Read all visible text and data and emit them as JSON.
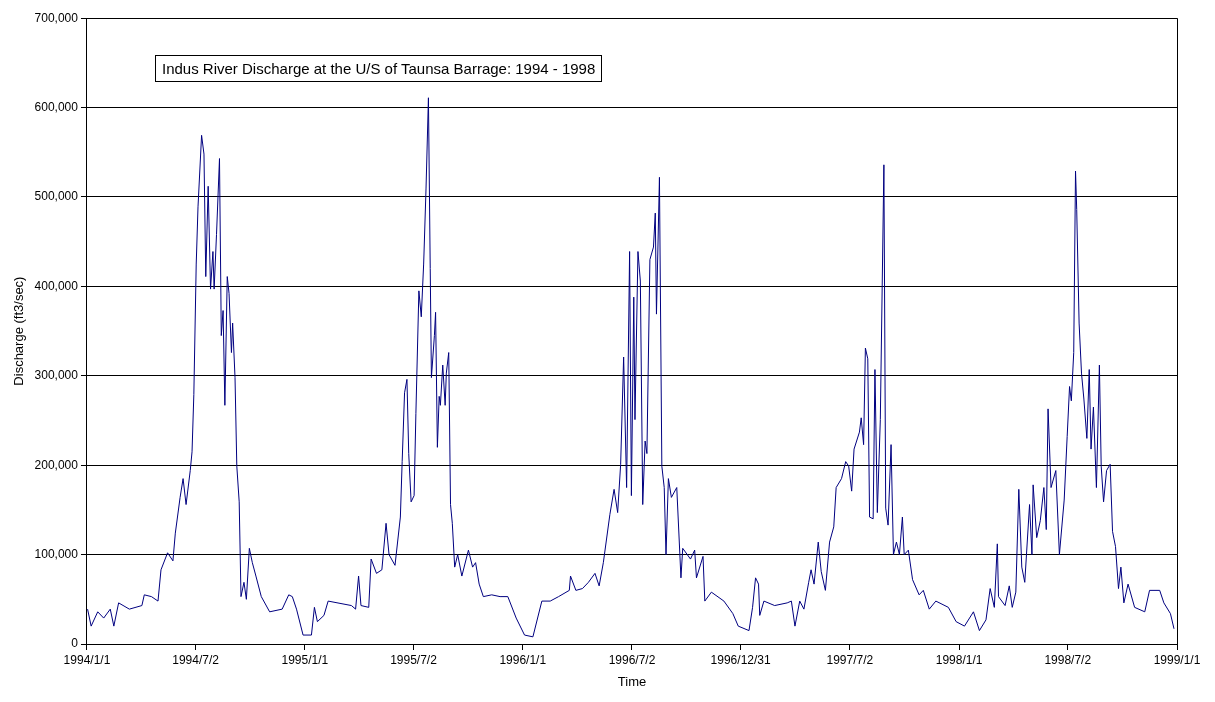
{
  "chart_data": {
    "type": "line",
    "title": "Indus River Discharge at the U/S of Taunsa Barrage: 1994 - 1998",
    "xlabel": "Time",
    "ylabel": "Discharge (ft3/sec)",
    "xlim": [
      "1994-01-01",
      "1999-01-01"
    ],
    "xticks": [
      {
        "value": "1994-01-01",
        "label": "1994/1/1"
      },
      {
        "value": "1994-07-02",
        "label": "1994/7/2"
      },
      {
        "value": "1995-01-01",
        "label": "1995/1/1"
      },
      {
        "value": "1995-07-02",
        "label": "1995/7/2"
      },
      {
        "value": "1996-01-01",
        "label": "1996/1/1"
      },
      {
        "value": "1996-07-02",
        "label": "1996/7/2"
      },
      {
        "value": "1996-12-31",
        "label": "1996/12/31"
      },
      {
        "value": "1997-07-02",
        "label": "1997/7/2"
      },
      {
        "value": "1998-01-01",
        "label": "1998/1/1"
      },
      {
        "value": "1998-07-02",
        "label": "1998/7/2"
      },
      {
        "value": "1999-01-01",
        "label": "1999/1/1"
      }
    ],
    "ylim": [
      0,
      700000
    ],
    "yticks": [
      0,
      {
        "value": 100000,
        "label": "100,000"
      },
      {
        "value": 200000,
        "label": "200,000"
      },
      {
        "value": 300000,
        "label": "300,000"
      },
      {
        "value": 400000,
        "label": "400,000"
      },
      {
        "value": 500000,
        "label": "500,000"
      },
      {
        "value": 600000,
        "label": "600,000"
      },
      {
        "value": 700000,
        "label": "700,000"
      }
    ],
    "grid": "y",
    "legend": false,
    "marker": "none",
    "line_style": "solid",
    "series": [
      {
        "color": "#000080",
        "x": [
          "1994-01-02",
          "1994-01-08",
          "1994-01-19",
          "1994-01-29",
          "1994-02-09",
          "1994-02-15",
          "1994-02-23",
          "1994-03-13",
          "1994-04-03",
          "1994-04-07",
          "1994-04-19",
          "1994-04-30",
          "1994-05-05",
          "1994-05-16",
          "1994-05-25",
          "1994-05-29",
          "1994-06-06",
          "1994-06-11",
          "1994-06-16",
          "1994-06-23",
          "1994-06-26",
          "1994-06-29",
          "1994-07-03",
          "1994-07-06",
          "1994-07-12",
          "1994-07-16",
          "1994-07-19",
          "1994-07-23",
          "1994-07-27",
          "1994-07-31",
          "1994-08-02",
          "1994-08-06",
          "1994-08-11",
          "1994-08-14",
          "1994-08-17",
          "1994-08-20",
          "1994-08-24",
          "1994-08-27",
          "1994-08-31",
          "1994-09-02",
          "1994-09-06",
          "1994-09-09",
          "1994-09-13",
          "1994-09-16",
          "1994-09-21",
          "1994-09-25",
          "1994-09-30",
          "1994-10-05",
          "1994-10-11",
          "1994-10-20",
          "1994-11-03",
          "1994-11-24",
          "1994-12-05",
          "1994-12-11",
          "1994-12-18",
          "1994-12-29",
          "1995-01-12",
          "1995-01-17",
          "1995-01-22",
          "1995-02-02",
          "1995-02-09",
          "1995-03-20",
          "1995-03-27",
          "1995-04-01",
          "1995-04-05",
          "1995-04-18",
          "1995-04-22",
          "1995-05-01",
          "1995-05-10",
          "1995-05-17",
          "1995-05-22",
          "1995-06-01",
          "1995-06-10",
          "1995-06-13",
          "1995-06-17",
          "1995-06-21",
          "1995-06-24",
          "1995-06-28",
          "1995-07-03",
          "1995-07-06",
          "1995-07-11",
          "1995-07-15",
          "1995-07-19",
          "1995-07-23",
          "1995-07-27",
          "1995-07-30",
          "1995-08-01",
          "1995-08-06",
          "1995-08-08",
          "1995-08-11",
          "1995-08-14",
          "1995-08-16",
          "1995-08-20",
          "1995-08-24",
          "1995-08-26",
          "1995-08-30",
          "1995-09-02",
          "1995-09-05",
          "1995-09-09",
          "1995-09-14",
          "1995-09-21",
          "1995-10-02",
          "1995-10-09",
          "1995-10-14",
          "1995-10-20",
          "1995-10-27",
          "1995-11-10",
          "1995-11-24",
          "1995-12-07",
          "1995-12-21",
          "1996-01-04",
          "1996-01-18",
          "1996-02-02",
          "1996-02-16",
          "1996-03-01",
          "1996-03-19",
          "1996-03-21",
          "1996-03-30",
          "1996-04-10",
          "1996-04-20",
          "1996-05-01",
          "1996-05-08",
          "1996-05-15",
          "1996-05-26",
          "1996-06-02",
          "1996-06-08",
          "1996-06-13",
          "1996-06-18",
          "1996-06-23",
          "1996-06-28",
          "1996-07-01",
          "1996-07-05",
          "1996-07-07",
          "1996-07-12",
          "1996-07-16",
          "1996-07-20",
          "1996-07-24",
          "1996-07-27",
          "1996-08-01",
          "1996-08-07",
          "1996-08-10",
          "1996-08-12",
          "1996-08-17",
          "1996-08-21",
          "1996-08-25",
          "1996-08-28",
          "1996-09-01",
          "1996-09-06",
          "1996-09-15",
          "1996-09-22",
          "1996-09-25",
          "1996-10-08",
          "1996-10-15",
          "1996-10-18",
          "1996-10-29",
          "1996-11-01",
          "1996-11-12",
          "1996-12-03",
          "1996-12-18",
          "1996-12-27",
          "1997-01-14",
          "1997-01-20",
          "1997-01-25",
          "1997-01-30",
          "1997-02-01",
          "1997-02-08",
          "1997-02-26",
          "1997-03-19",
          "1997-03-26",
          "1997-04-01",
          "1997-04-09",
          "1997-04-16",
          "1997-04-24",
          "1997-04-28",
          "1997-05-03",
          "1997-05-10",
          "1997-05-15",
          "1997-05-22",
          "1997-05-29",
          "1997-06-05",
          "1997-06-09",
          "1997-06-18",
          "1997-06-25",
          "1997-06-30",
          "1997-07-05",
          "1997-07-09",
          "1997-07-18",
          "1997-07-21",
          "1997-07-25",
          "1997-07-28",
          "1997-08-01",
          "1997-08-04",
          "1997-08-10",
          "1997-08-13",
          "1997-08-17",
          "1997-08-22",
          "1997-08-28",
          "1997-08-31",
          "1997-09-04",
          "1997-09-09",
          "1997-09-13",
          "1997-09-18",
          "1997-09-23",
          "1997-09-28",
          "1997-10-01",
          "1997-10-08",
          "1997-10-15",
          "1997-10-26",
          "1997-11-02",
          "1997-11-12",
          "1997-11-23",
          "1997-12-14",
          "1997-12-27",
          "1998-01-10",
          "1998-01-25",
          "1998-02-04",
          "1998-02-15",
          "1998-02-22",
          "1998-03-01",
          "1998-03-06",
          "1998-03-08",
          "1998-03-19",
          "1998-03-26",
          "1998-03-31",
          "1998-04-06",
          "1998-04-11",
          "1998-04-16",
          "1998-04-21",
          "1998-04-29",
          "1998-05-03",
          "1998-05-05",
          "1998-05-11",
          "1998-05-17",
          "1998-05-23",
          "1998-05-27",
          "1998-05-30",
          "1998-06-04",
          "1998-06-12",
          "1998-06-18",
          "1998-06-26",
          "1998-07-01",
          "1998-07-05",
          "1998-07-08",
          "1998-07-12",
          "1998-07-15",
          "1998-07-17",
          "1998-07-21",
          "1998-07-25",
          "1998-07-29",
          "1998-08-03",
          "1998-08-07",
          "1998-08-10",
          "1998-08-14",
          "1998-08-19",
          "1998-08-24",
          "1998-08-27",
          "1998-08-31",
          "1998-09-05",
          "1998-09-11",
          "1998-09-15",
          "1998-09-20",
          "1998-09-25",
          "1998-09-29",
          "1998-10-04",
          "1998-10-11",
          "1998-10-22",
          "1998-11-08",
          "1998-11-16",
          "1998-12-03",
          "1998-12-10",
          "1998-12-21",
          "1998-12-27"
        ],
        "values": [
          39000,
          20000,
          36000,
          29000,
          39000,
          20000,
          46000,
          39000,
          43000,
          55000,
          53000,
          48000,
          83000,
          102000,
          93000,
          124000,
          164000,
          185000,
          156000,
          194000,
          215000,
          279000,
          425000,
          489000,
          569000,
          548000,
          411000,
          512000,
          397000,
          439000,
          397000,
          458000,
          543000,
          345000,
          373000,
          267000,
          411000,
          392000,
          326000,
          359000,
          298000,
          199000,
          159000,
          53000,
          69000,
          50000,
          107000,
          91000,
          76000,
          53000,
          36000,
          39000,
          55000,
          53000,
          39000,
          10000,
          10000,
          41000,
          25000,
          32000,
          48000,
          43000,
          39000,
          76000,
          43000,
          41000,
          95000,
          79000,
          83000,
          135000,
          100000,
          88000,
          142000,
          204000,
          281000,
          296000,
          213000,
          159000,
          166000,
          258000,
          395000,
          366000,
          425000,
          510000,
          611000,
          420000,
          298000,
          345000,
          371000,
          220000,
          277000,
          267000,
          312000,
          267000,
          303000,
          326000,
          156000,
          135000,
          86000,
          100000,
          76000,
          105000,
          86000,
          91000,
          67000,
          53000,
          55000,
          53000,
          53000,
          29000,
          10000,
          8000,
          48000,
          48000,
          53000,
          60000,
          76000,
          60000,
          62000,
          69000,
          79000,
          65000,
          91000,
          145000,
          173000,
          147000,
          201000,
          321000,
          175000,
          439000,
          166000,
          388000,
          251000,
          439000,
          406000,
          156000,
          227000,
          213000,
          430000,
          444000,
          482000,
          369000,
          522000,
          199000,
          175000,
          100000,
          185000,
          164000,
          175000,
          74000,
          107000,
          95000,
          105000,
          74000,
          98000,
          48000,
          58000,
          48000,
          34000,
          20000,
          15000,
          41000,
          74000,
          67000,
          32000,
          48000,
          43000,
          46000,
          48000,
          20000,
          48000,
          39000,
          69000,
          83000,
          67000,
          114000,
          81000,
          60000,
          114000,
          131000,
          175000,
          185000,
          204000,
          199000,
          171000,
          218000,
          237000,
          253000,
          223000,
          331000,
          319000,
          142000,
          140000,
          307000,
          147000,
          251000,
          536000,
          152000,
          133000,
          223000,
          100000,
          114000,
          100000,
          142000,
          100000,
          105000,
          72000,
          55000,
          60000,
          39000,
          48000,
          41000,
          25000,
          20000,
          36000,
          15000,
          27000,
          62000,
          41000,
          112000,
          53000,
          43000,
          65000,
          41000,
          58000,
          173000,
          86000,
          69000,
          156000,
          100000,
          178000,
          119000,
          138000,
          175000,
          128000,
          263000,
          175000,
          194000,
          100000,
          161000,
          232000,
          288000,
          272000,
          326000,
          529000,
          486000,
          359000,
          303000,
          274000,
          230000,
          307000,
          218000,
          265000,
          175000,
          312000,
          199000,
          159000,
          194000,
          201000,
          126000,
          109000,
          62000,
          86000,
          46000,
          67000,
          41000,
          36000,
          60000,
          60000,
          46000,
          34000,
          17000
        ]
      }
    ]
  }
}
